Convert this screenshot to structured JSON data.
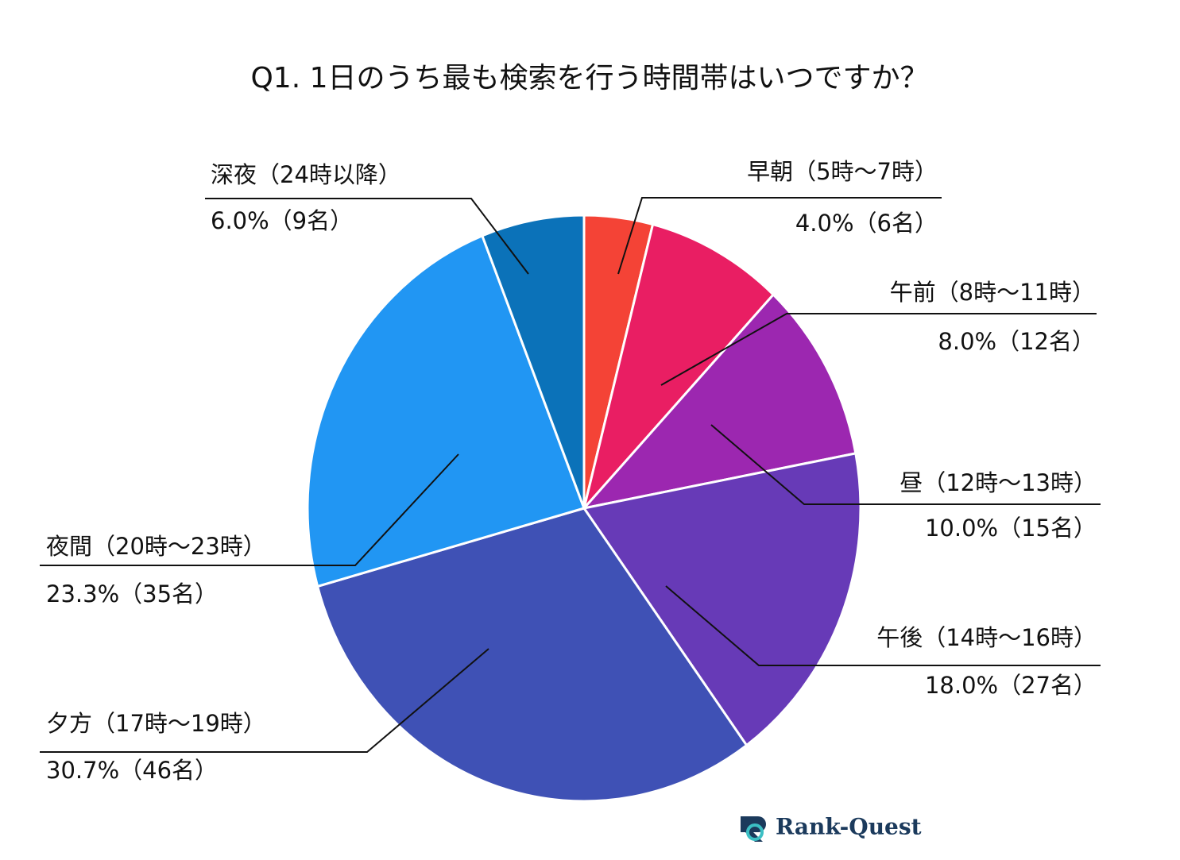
{
  "chart_data": {
    "type": "pie",
    "title": "Q1. 1日のうち最も検索を行う時間帯はいつですか？",
    "categories": [
      "早朝（5時～7時）",
      "午前（8時～11時）",
      "昼（12時～13時）",
      "午後（14時～16時）",
      "夕方（17時～19時）",
      "夜間（20時～23時）",
      "深夜（24時以降）"
    ],
    "values": [
      4.0,
      8.0,
      10.0,
      18.0,
      30.7,
      23.3,
      6.0
    ],
    "value_labels": [
      "4.0%（6名）",
      "8.0%（12名）",
      "10.0%（15名）",
      "18.0%（27名）",
      "30.7%（46名）",
      "23.3%（35名）",
      "6.0%（9名）"
    ],
    "colors": [
      "#f44336",
      "#e91e63",
      "#9c27b0",
      "#673ab7",
      "#3f51b5",
      "#2196f3",
      "#0b72b9"
    ],
    "logo": "Rank-Quest"
  }
}
